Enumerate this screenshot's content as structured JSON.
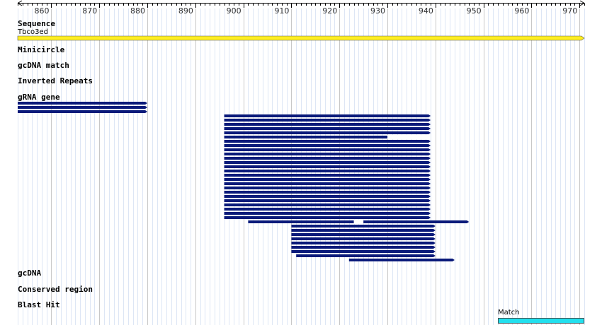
{
  "ruler": {
    "start": 853,
    "end": 971,
    "ticks": [
      860,
      870,
      880,
      890,
      900,
      910,
      920,
      930,
      940,
      950,
      960,
      970
    ]
  },
  "tracks": {
    "sequence": {
      "label": "Sequence",
      "name": "Tbco3ed"
    },
    "minicircle": {
      "label": "Minicircle"
    },
    "gcdna_match": {
      "label": "gcDNA match"
    },
    "inverted_repeats": {
      "label": "Inverted Repeats"
    },
    "grna_gene": {
      "label": "gRNA gene",
      "features": [
        {
          "start": 853,
          "end": 880,
          "gaps": []
        },
        {
          "start": 853,
          "end": 880,
          "gaps": []
        },
        {
          "start": 853,
          "end": 880,
          "gaps": []
        },
        {
          "start": 896,
          "end": 939,
          "gaps": []
        },
        {
          "start": 896,
          "end": 939,
          "gaps": []
        },
        {
          "start": 896,
          "end": 939,
          "gaps": []
        },
        {
          "start": 896,
          "end": 939,
          "gaps": []
        },
        {
          "start": 896,
          "end": 939,
          "gaps": []
        },
        {
          "start": 896,
          "end": 939,
          "gaps": [
            [
              930,
              939
            ]
          ]
        },
        {
          "start": 896,
          "end": 939,
          "gaps": []
        },
        {
          "start": 896,
          "end": 939,
          "gaps": []
        },
        {
          "start": 896,
          "end": 939,
          "gaps": []
        },
        {
          "start": 896,
          "end": 939,
          "gaps": []
        },
        {
          "start": 896,
          "end": 939,
          "gaps": []
        },
        {
          "start": 896,
          "end": 939,
          "gaps": []
        },
        {
          "start": 896,
          "end": 939,
          "gaps": []
        },
        {
          "start": 896,
          "end": 939,
          "gaps": []
        },
        {
          "start": 896,
          "end": 939,
          "gaps": []
        },
        {
          "start": 896,
          "end": 939,
          "gaps": []
        },
        {
          "start": 896,
          "end": 939,
          "gaps": []
        },
        {
          "start": 896,
          "end": 939,
          "gaps": []
        },
        {
          "start": 896,
          "end": 939,
          "gaps": []
        },
        {
          "start": 896,
          "end": 939,
          "gaps": []
        },
        {
          "start": 896,
          "end": 939,
          "gaps": []
        },
        {
          "start": 896,
          "end": 939,
          "gaps": []
        },
        {
          "start": 896,
          "end": 939,
          "gaps": []
        },
        {
          "start": 896,
          "end": 939,
          "gaps": []
        },
        {
          "start": 896,
          "end": 939,
          "gaps": []
        },
        {
          "start": 901,
          "end": 947,
          "gaps": [
            [
              923,
              925
            ]
          ]
        },
        {
          "start": 910,
          "end": 940,
          "gaps": []
        },
        {
          "start": 910,
          "end": 940,
          "gaps": []
        },
        {
          "start": 910,
          "end": 940,
          "gaps": []
        },
        {
          "start": 910,
          "end": 940,
          "gaps": []
        },
        {
          "start": 910,
          "end": 940,
          "gaps": []
        },
        {
          "start": 910,
          "end": 940,
          "gaps": []
        },
        {
          "start": 910,
          "end": 940,
          "gaps": []
        },
        {
          "start": 911,
          "end": 940,
          "gaps": []
        },
        {
          "start": 922,
          "end": 944,
          "gaps": []
        }
      ]
    },
    "gcdna": {
      "label": "gcDNA"
    },
    "conserved_region": {
      "label": "Conserved region"
    },
    "blast_hit": {
      "label": "Blast Hit",
      "match_label": "Match",
      "match_start": 953,
      "match_end": 971
    }
  },
  "colors": {
    "sequence_fill": "#ffee22",
    "grna_fill": "#0a1a7a",
    "blast_fill": "#22e0ee",
    "grid_major": "#c8c8c8",
    "grid_minor": "#dde6f5"
  }
}
